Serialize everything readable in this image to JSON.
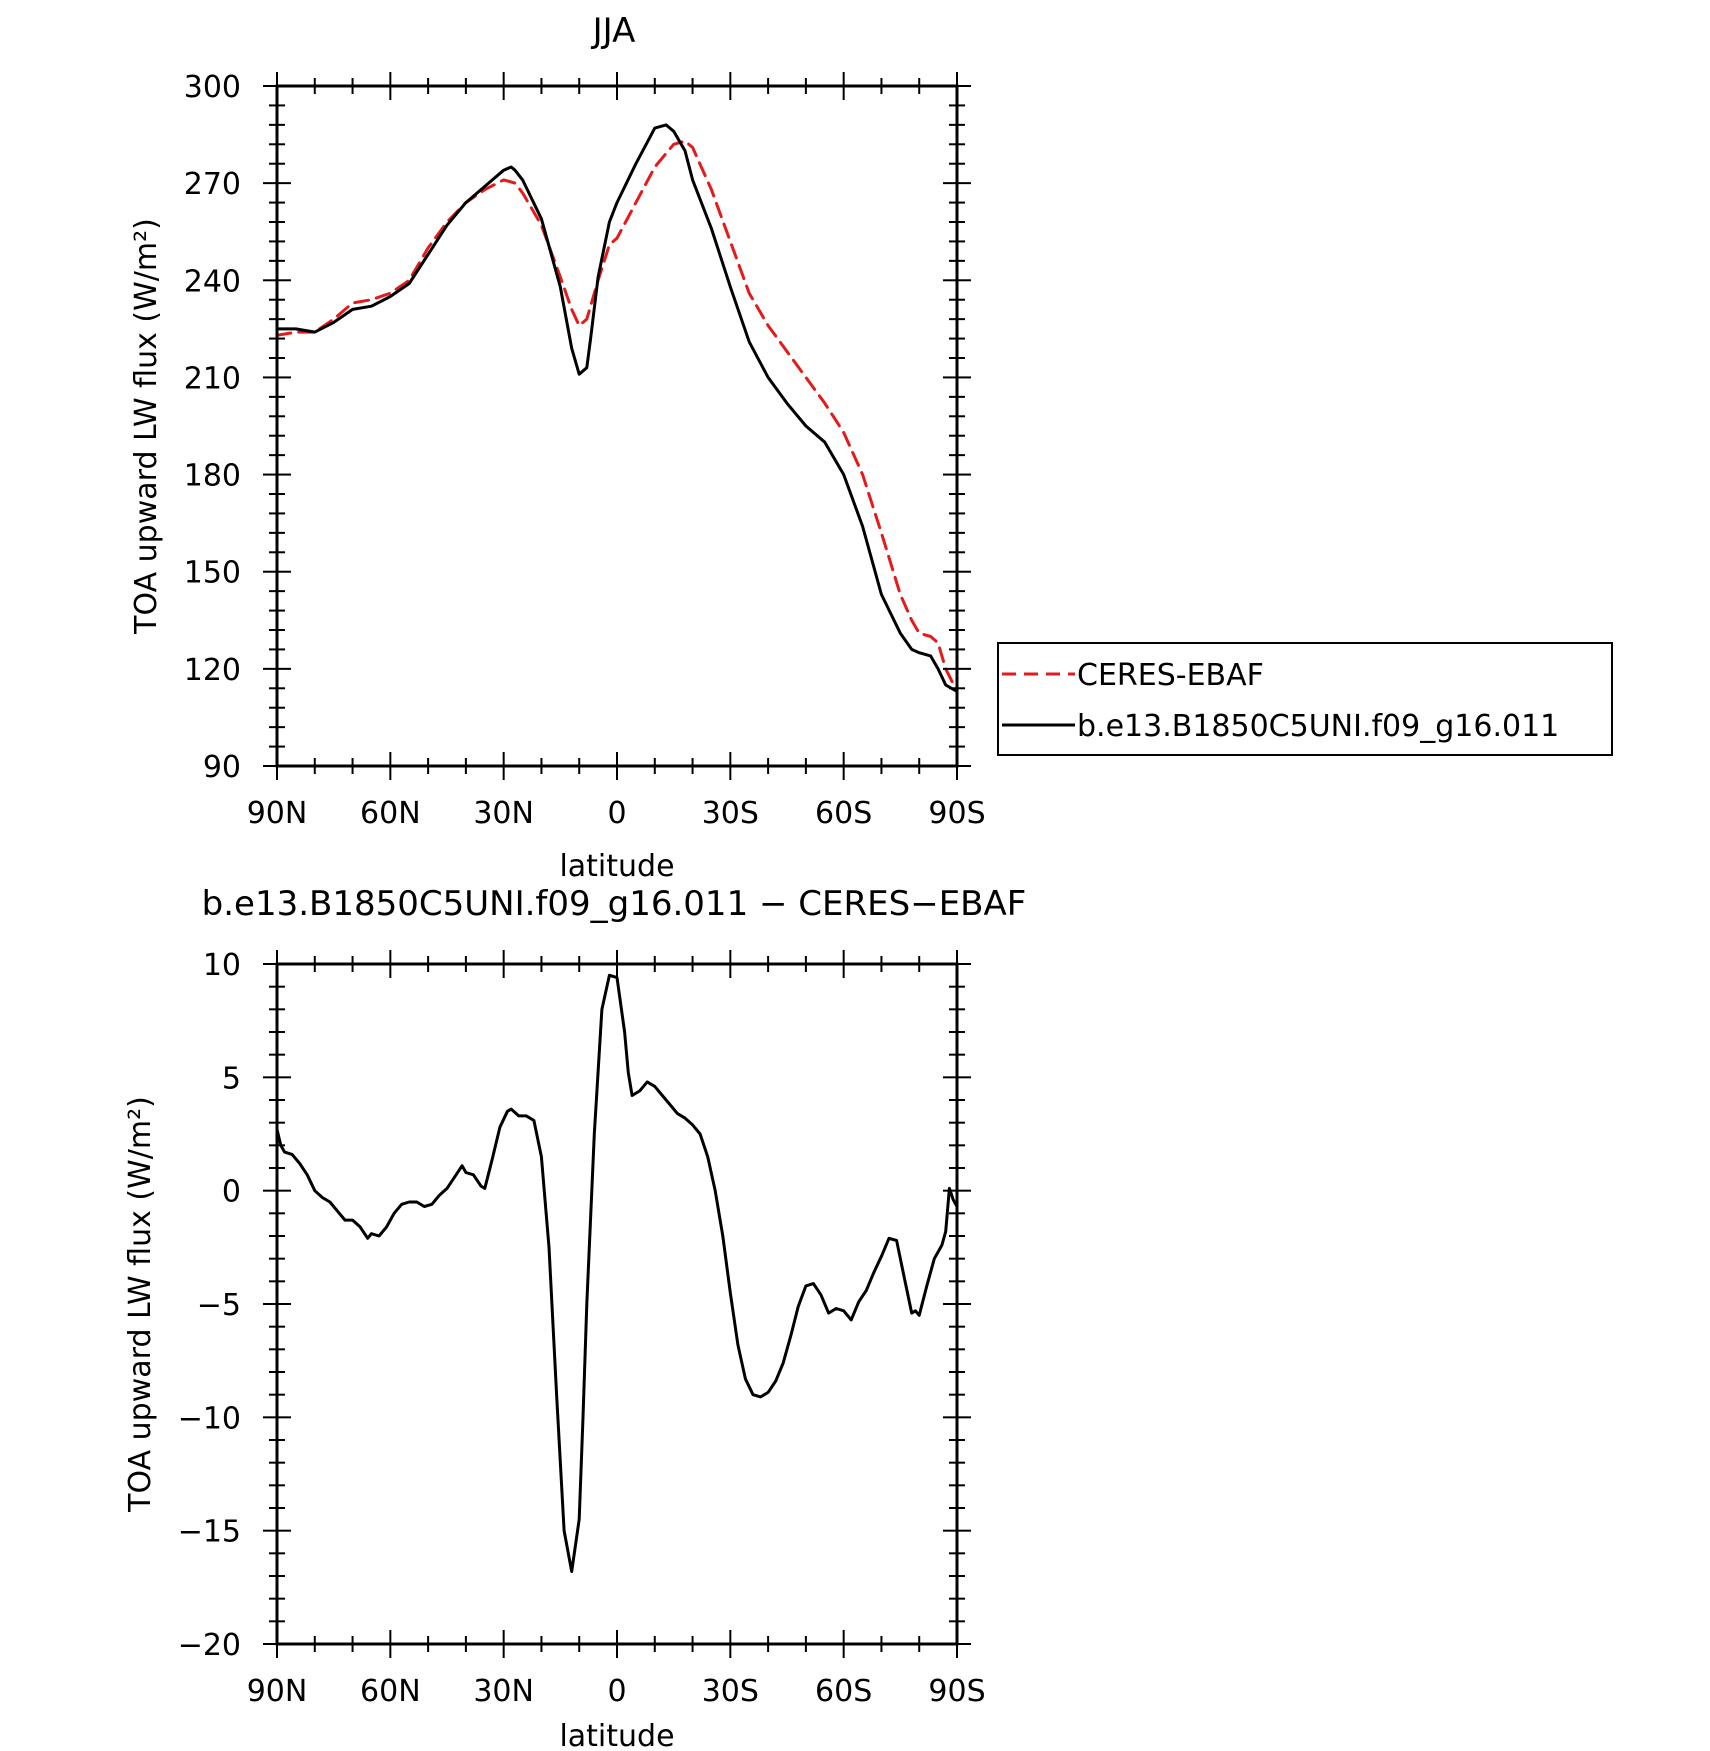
{
  "chart_data": [
    {
      "type": "line",
      "title": "JJA",
      "xlabel": "latitude",
      "ylabel": "TOA upward LW flux (W/m²)",
      "xlim": [
        90,
        -90
      ],
      "ylim": [
        90,
        300
      ],
      "xticks": [
        90,
        60,
        30,
        0,
        -30,
        -60,
        -90
      ],
      "xtick_labels": [
        "90N",
        "60N",
        "30N",
        "0",
        "30S",
        "60S",
        "90S"
      ],
      "yticks": [
        90,
        120,
        150,
        180,
        210,
        240,
        270,
        300
      ],
      "ytick_labels": [
        "90",
        "120",
        "150",
        "180",
        "210",
        "240",
        "270",
        "300"
      ],
      "grid": false,
      "legend_position": "right",
      "series": [
        {
          "name": "CERES-EBAF",
          "color": "#e41a1c",
          "dash": "dashed",
          "x": [
            90,
            85,
            80,
            75,
            70,
            65,
            60,
            55,
            50,
            45,
            40,
            35,
            30,
            27,
            25,
            20,
            15,
            12,
            10,
            8,
            5,
            2,
            0,
            -5,
            -10,
            -15,
            -18,
            -20,
            -25,
            -30,
            -35,
            -40,
            -45,
            -50,
            -55,
            -60,
            -65,
            -70,
            -75,
            -78,
            -80,
            -83,
            -85,
            -87,
            -90
          ],
          "y": [
            223,
            224,
            224,
            228,
            233,
            234,
            236,
            240,
            250,
            258,
            264,
            268,
            271,
            270,
            267,
            257,
            241,
            231,
            226,
            228,
            240,
            251,
            253,
            264,
            275,
            282,
            283,
            281,
            268,
            252,
            236,
            226,
            218,
            210,
            202,
            193,
            180,
            162,
            143,
            135,
            131,
            130,
            128,
            120,
            113
          ]
        },
        {
          "name": "b.e13.B1850C5UNI.f09_g16.011",
          "color": "#000000",
          "dash": "solid",
          "x": [
            90,
            85,
            80,
            75,
            70,
            65,
            60,
            55,
            50,
            45,
            40,
            35,
            30,
            28,
            27,
            25,
            20,
            15,
            12,
            10,
            8,
            7,
            5,
            2,
            0,
            -5,
            -10,
            -13,
            -15,
            -18,
            -20,
            -25,
            -30,
            -35,
            -40,
            -45,
            -50,
            -55,
            -60,
            -65,
            -70,
            -75,
            -78,
            -80,
            -83,
            -85,
            -87,
            -90
          ],
          "y": [
            225,
            225,
            224,
            227,
            231,
            232,
            235,
            239,
            248,
            257,
            264,
            269,
            274,
            275,
            274,
            271,
            259,
            238,
            219,
            211,
            213,
            222,
            241,
            258,
            264,
            276,
            287,
            288,
            286,
            280,
            271,
            256,
            238,
            221,
            210,
            202,
            195,
            190,
            180,
            164,
            143,
            131,
            126,
            125,
            124,
            120,
            115,
            113
          ]
        }
      ]
    },
    {
      "type": "line",
      "title": "b.e13.B1850C5UNI.f09_g16.011 − CERES−EBAF",
      "xlabel": "latitude",
      "ylabel": "TOA upward LW flux (W/m²)",
      "xlim": [
        90,
        -90
      ],
      "ylim": [
        -20,
        10
      ],
      "xticks": [
        90,
        60,
        30,
        0,
        -30,
        -60,
        -90
      ],
      "xtick_labels": [
        "90N",
        "60N",
        "30N",
        "0",
        "30S",
        "60S",
        "90S"
      ],
      "yticks": [
        -20,
        -15,
        -10,
        -5,
        0,
        5,
        10
      ],
      "ytick_labels": [
        "−20",
        "−15",
        "−10",
        "−5",
        "0",
        "5",
        "10"
      ],
      "grid": false,
      "series": [
        {
          "color": "#000000",
          "dash": "solid",
          "x": [
            90,
            89,
            88,
            86,
            84,
            82,
            80,
            78,
            76,
            74,
            72,
            70,
            68,
            66,
            65,
            63,
            61,
            59,
            57,
            55,
            53,
            51,
            49,
            47,
            45,
            43,
            41,
            40,
            38,
            36,
            35,
            33,
            31,
            29,
            28,
            26,
            24,
            22,
            20,
            18,
            16,
            14,
            12,
            10,
            9,
            8,
            6,
            4,
            2,
            0,
            -2,
            -3,
            -4,
            -6,
            -8,
            -10,
            -12,
            -14,
            -16,
            -18,
            -20,
            -22,
            -24,
            -26,
            -28,
            -30,
            -32,
            -34,
            -36,
            -38,
            -40,
            -42,
            -44,
            -46,
            -48,
            -50,
            -52,
            -54,
            -56,
            -58,
            -60,
            -62,
            -64,
            -66,
            -68,
            -70,
            -72,
            -74,
            -76,
            -78,
            -79,
            -80,
            -82,
            -84,
            -86,
            -87,
            -88,
            -89,
            -90
          ],
          "y": [
            2.7,
            2.0,
            1.7,
            1.6,
            1.2,
            0.7,
            0.0,
            -0.3,
            -0.5,
            -0.9,
            -1.3,
            -1.3,
            -1.6,
            -2.1,
            -1.9,
            -2.0,
            -1.6,
            -1.0,
            -0.6,
            -0.5,
            -0.5,
            -0.7,
            -0.6,
            -0.2,
            0.1,
            0.6,
            1.1,
            0.8,
            0.7,
            0.2,
            0.1,
            1.4,
            2.8,
            3.5,
            3.6,
            3.3,
            3.3,
            3.1,
            1.5,
            -2.5,
            -9.0,
            -15.0,
            -16.8,
            -14.5,
            -10.0,
            -5.0,
            2.5,
            8.0,
            9.5,
            9.4,
            7.0,
            5.2,
            4.2,
            4.4,
            4.8,
            4.6,
            4.2,
            3.8,
            3.4,
            3.2,
            2.9,
            2.5,
            1.5,
            0.0,
            -2.0,
            -4.5,
            -6.8,
            -8.3,
            -9.0,
            -9.1,
            -8.9,
            -8.4,
            -7.6,
            -6.4,
            -5.1,
            -4.2,
            -4.1,
            -4.6,
            -5.4,
            -5.2,
            -5.3,
            -5.7,
            -4.9,
            -4.4,
            -3.6,
            -2.9,
            -2.1,
            -2.2,
            -3.8,
            -5.4,
            -5.3,
            -5.5,
            -4.2,
            -3.0,
            -2.4,
            -1.8,
            0.1,
            -0.4,
            -0.7
          ]
        }
      ]
    }
  ]
}
